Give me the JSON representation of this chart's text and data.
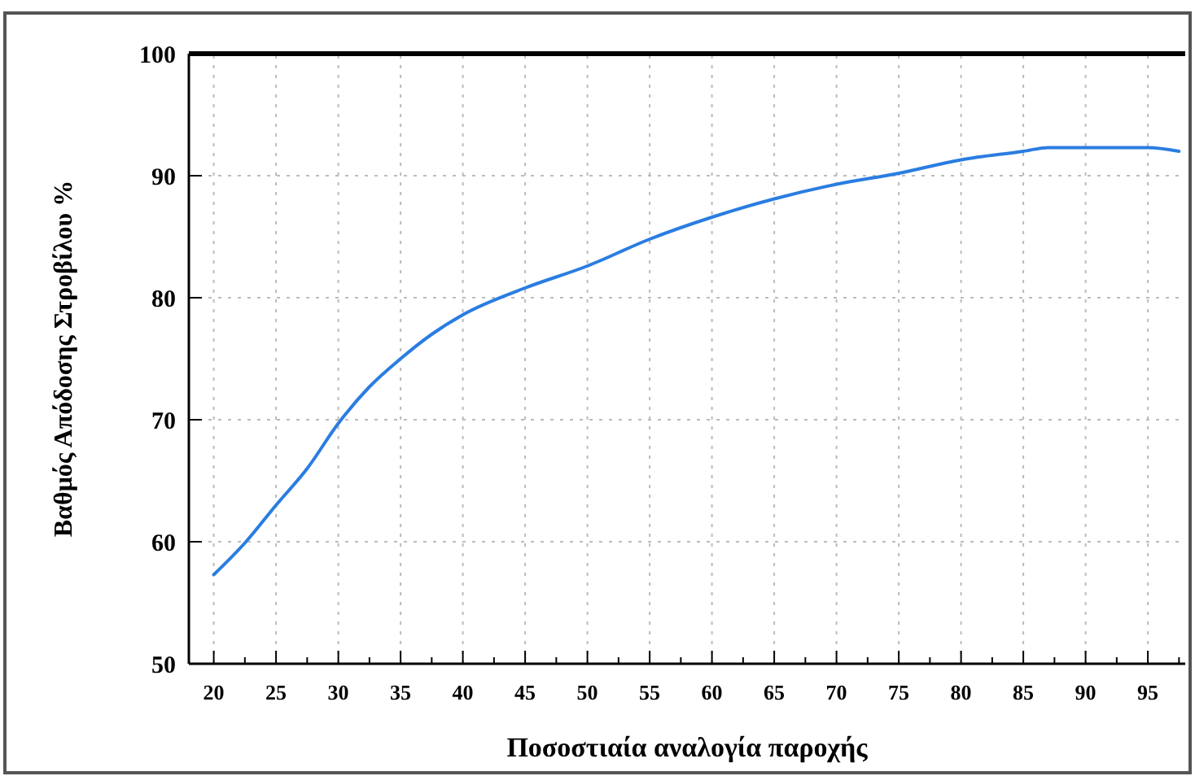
{
  "chart_data": {
    "type": "line",
    "xlabel": "Ποσοστιαία αναλογία παροχής",
    "ylabel": "Βαθμός Απόδοσης Στροβίλου %",
    "xlim": [
      18,
      98
    ],
    "ylim": [
      50,
      100
    ],
    "xticks": [
      20,
      {
        "value": 22.5,
        "label": null
      },
      25,
      {
        "value": 27.5,
        "label": null
      },
      30,
      {
        "value": 32.5,
        "label": null
      },
      35,
      {
        "value": 37.5,
        "label": null
      },
      40,
      {
        "value": 42.5,
        "label": null
      },
      45,
      {
        "value": 47.5,
        "label": null
      },
      50,
      {
        "value": 52.5,
        "label": null
      },
      55,
      {
        "value": 57.5,
        "label": null
      },
      60,
      {
        "value": 62.5,
        "label": null
      },
      65,
      {
        "value": 67.5,
        "label": null
      },
      70,
      {
        "value": 72.5,
        "label": null
      },
      75,
      {
        "value": 77.5,
        "label": null
      },
      80,
      {
        "value": 82.5,
        "label": null
      },
      85,
      {
        "value": 87.5,
        "label": null
      },
      90,
      {
        "value": 92.5,
        "label": null
      },
      95,
      {
        "value": 97.5,
        "label": null
      }
    ],
    "yticks": [
      50,
      60,
      70,
      80,
      90,
      100
    ],
    "grid": true,
    "marker": "none",
    "line_style": "solid",
    "series": [
      {
        "color": "#2a7de1",
        "x": [
          20,
          22.5,
          25,
          27.5,
          30,
          32.5,
          35,
          37.5,
          40,
          45,
          50,
          55,
          60,
          65,
          70,
          75,
          80,
          85,
          87,
          95,
          97.5
        ],
        "values": [
          57.3,
          59.9,
          63,
          66,
          69.7,
          72.7,
          75,
          77,
          78.6,
          80.8,
          82.6,
          84.8,
          86.6,
          88.1,
          89.3,
          90.2,
          91.3,
          92,
          92.3,
          92.3,
          92
        ]
      }
    ]
  }
}
